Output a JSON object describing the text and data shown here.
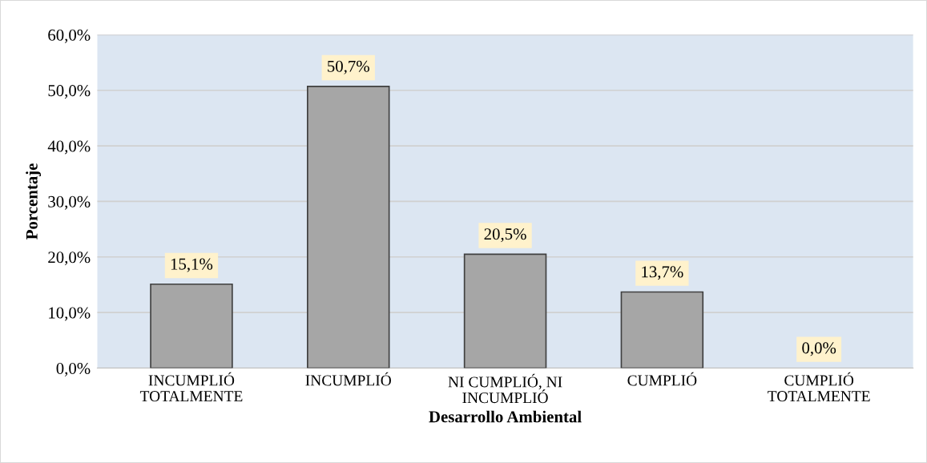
{
  "chart_data": {
    "type": "bar",
    "xlabel": "Desarrollo Ambiental",
    "ylabel": "Porcentaje",
    "categories": [
      "INCUMPLIÓ\nTOTALMENTE",
      "INCUMPLIÓ",
      "NI CUMPLIÓ, NI\nINCUMPLIÓ",
      "CUMPLIÓ",
      "CUMPLIÓ\nTOTALMENTE"
    ],
    "values": [
      15.1,
      50.7,
      20.5,
      13.7,
      0.0
    ],
    "value_labels": [
      "15,1%",
      "50,7%",
      "20,5%",
      "13,7%",
      "0,0%"
    ],
    "color": "#a6a6a6",
    "ylim": [
      0,
      60
    ],
    "yticks": [
      {
        "value": 0,
        "label": "0,0%"
      },
      {
        "value": 10,
        "label": "10,0%"
      },
      {
        "value": 20,
        "label": "20,0%"
      },
      {
        "value": 30,
        "label": "30,0%"
      },
      {
        "value": 40,
        "label": "40,0%"
      },
      {
        "value": 50,
        "label": "50,0%"
      },
      {
        "value": 60,
        "label": "60,0%"
      }
    ],
    "grid": "y",
    "legend": false
  }
}
